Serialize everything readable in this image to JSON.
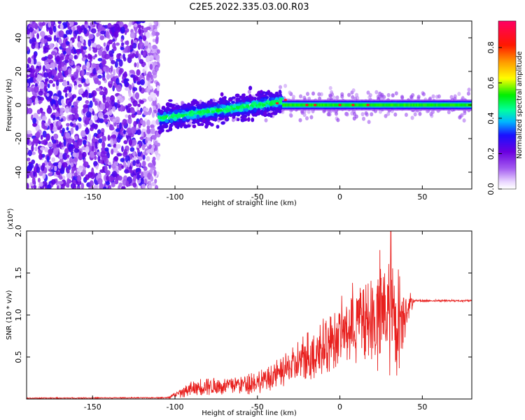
{
  "title": "C2E5.2022.335.03.00.R03",
  "chart_data": [
    {
      "type": "heatmap",
      "xlabel": "Height of straight line (km)",
      "ylabel": "Frequency (Hz)",
      "xlim": [
        -190,
        80
      ],
      "ylim": [
        -50,
        50
      ],
      "xticks": [
        -150,
        -100,
        -50,
        0,
        50
      ],
      "yticks": [
        -40,
        -20,
        0,
        20,
        40
      ],
      "colorbar": {
        "label": "Normalized spectral amplitude",
        "range": [
          0,
          0.95
        ],
        "ticks": [
          0.0,
          0.2,
          0.4,
          0.6,
          0.8
        ],
        "colormap": "rainbow"
      },
      "regions": [
        {
          "x": [
            -190,
            -110
          ],
          "y": [
            -50,
            50
          ],
          "amplitude": [
            0.05,
            0.3
          ]
        },
        {
          "x": [
            -110,
            -35
          ],
          "y_center": [
            -8,
            2
          ],
          "halfwidth": 5,
          "amplitude": [
            0.3,
            0.5
          ]
        },
        {
          "x": [
            -35,
            80
          ],
          "y_center": 0,
          "halfwidth": 3,
          "amplitude": [
            0.45,
            0.95
          ]
        }
      ],
      "hotspots": [
        {
          "x": -38,
          "y": 1
        },
        {
          "x": -33,
          "y": 3
        },
        {
          "x": -20,
          "y": 0
        },
        {
          "x": -15,
          "y": 0
        },
        {
          "x": 0,
          "y": 0
        },
        {
          "x": 8,
          "y": 0
        },
        {
          "x": 17,
          "y": 0
        }
      ]
    },
    {
      "type": "line",
      "xlabel": "Height of straight line (km)",
      "ylabel": "SNR (10 * v/v)",
      "y_multiplier": "(x10⁴)",
      "xlim": [
        -190,
        80
      ],
      "ylim": [
        0,
        2.0
      ],
      "xticks": [
        -150,
        -100,
        -50,
        0,
        50
      ],
      "yticks": [
        0.5,
        1.0,
        1.5,
        2.0
      ],
      "series": [
        {
          "color": "#e8201e",
          "envelope_x": [
            -190,
            -105,
            -100,
            -90,
            -80,
            -70,
            -60,
            -50,
            -40,
            -30,
            -20,
            -10,
            0,
            10,
            20,
            25,
            30,
            35,
            40,
            45,
            50,
            60,
            70,
            80
          ],
          "envelope_mean": [
            0.01,
            0.015,
            0.05,
            0.12,
            0.16,
            0.15,
            0.18,
            0.2,
            0.27,
            0.37,
            0.5,
            0.62,
            0.78,
            0.92,
            0.95,
            1.0,
            1.0,
            0.9,
            1.1,
            1.17,
            1.17,
            1.17,
            1.17,
            1.17
          ],
          "envelope_spread": [
            0.005,
            0.005,
            0.03,
            0.08,
            0.09,
            0.09,
            0.1,
            0.12,
            0.14,
            0.18,
            0.25,
            0.3,
            0.3,
            0.4,
            0.55,
            0.6,
            0.65,
            0.55,
            0.25,
            0.01,
            0.01,
            0.01,
            0.01,
            0.01
          ],
          "peak": {
            "x": 31,
            "y": 2.05
          }
        }
      ]
    }
  ]
}
